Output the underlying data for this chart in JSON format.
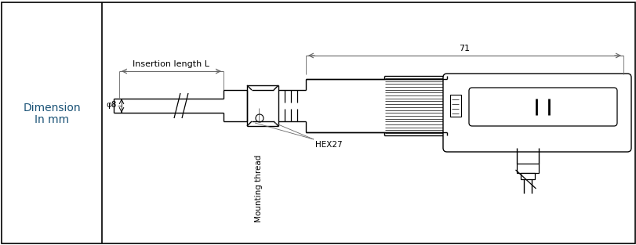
{
  "bg_color": "#ffffff",
  "line_color": "#000000",
  "dim_color": "#666666",
  "text_color": "#000000",
  "left_text_color": "#1a5276",
  "fig_width": 8.12,
  "fig_height": 3.13,
  "left_panel_text1": "Dimension",
  "left_panel_text2": "In mm",
  "label_insertion": "Insertion length L",
  "label_phi": "φ8",
  "label_mounting": "Mounting thread",
  "label_hex": "HEX27",
  "label_71": "71"
}
